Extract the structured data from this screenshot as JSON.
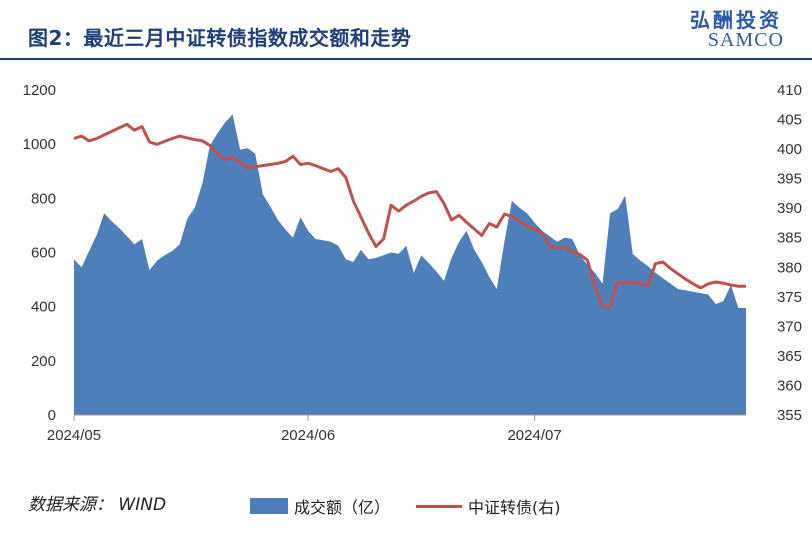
{
  "header": {
    "title": "图2：最近三月中证转债指数成交额和走势",
    "brand_cn": "弘酬投资",
    "brand_en": "SAMCO"
  },
  "footer": {
    "source": "数据来源：  WIND"
  },
  "colors": {
    "volume_area": "#4e7fbb",
    "index_line": "#c0504d",
    "title": "#1f3f78",
    "brand": "#2a5aa8"
  },
  "chart_data": {
    "type": "area+line",
    "x_ticks": [
      {
        "label": "2024/05",
        "t": 0
      },
      {
        "label": "2024/06",
        "t": 31
      },
      {
        "label": "2024/07",
        "t": 61
      }
    ],
    "x_range": [
      0,
      89
    ],
    "y_left": {
      "ticks": [
        0,
        200,
        400,
        600,
        800,
        1000,
        1200
      ],
      "range": [
        0,
        1200
      ]
    },
    "y_right": {
      "ticks": [
        355,
        360,
        365,
        370,
        375,
        380,
        385,
        390,
        395,
        400,
        405,
        410
      ],
      "range": [
        355,
        410
      ]
    },
    "legend": [
      "成交额（亿）",
      "中证转债(右)"
    ],
    "series": [
      {
        "name": "成交额（亿）",
        "axis": "left",
        "kind": "area",
        "t": [
          0,
          1,
          2,
          3,
          4,
          5,
          6,
          7,
          8,
          9,
          10,
          11,
          12,
          13,
          14,
          15,
          16,
          17,
          18,
          19,
          20,
          21,
          22,
          23,
          24,
          25,
          26,
          27,
          28,
          29,
          30,
          31,
          32,
          33,
          34,
          35,
          36,
          37,
          38,
          39,
          40,
          41,
          42,
          43,
          44,
          45,
          46,
          47,
          48,
          49,
          50,
          51,
          52,
          53,
          54,
          55,
          56,
          57,
          58,
          59,
          60,
          61,
          62,
          63,
          64,
          65,
          66,
          67,
          68,
          69,
          70,
          71,
          72,
          73,
          74,
          75,
          76,
          77,
          78,
          79,
          80,
          81,
          82,
          83,
          84,
          85,
          86,
          87,
          88,
          89
        ],
        "values": [
          575,
          545,
          605,
          665,
          745,
          715,
          690,
          660,
          630,
          650,
          535,
          570,
          590,
          605,
          630,
          725,
          765,
          855,
          995,
          1040,
          1080,
          1110,
          980,
          985,
          965,
          815,
          770,
          720,
          685,
          655,
          730,
          680,
          650,
          645,
          640,
          625,
          575,
          565,
          610,
          575,
          580,
          590,
          600,
          595,
          625,
          525,
          590,
          560,
          530,
          495,
          580,
          640,
          680,
          610,
          565,
          510,
          465,
          640,
          790,
          765,
          745,
          710,
          680,
          660,
          640,
          655,
          650,
          590,
          555,
          525,
          485,
          745,
          760,
          810,
          595,
          570,
          550,
          525,
          505,
          485,
          465,
          460,
          455,
          450,
          445,
          410,
          420,
          480,
          395,
          395
        ]
      },
      {
        "name": "中证转债(右)",
        "axis": "right",
        "kind": "line",
        "t": [
          0,
          1,
          2,
          3,
          4,
          5,
          6,
          7,
          8,
          9,
          10,
          11,
          12,
          13,
          14,
          15,
          16,
          17,
          18,
          19,
          20,
          21,
          22,
          23,
          24,
          25,
          26,
          27,
          28,
          29,
          30,
          31,
          32,
          33,
          34,
          35,
          36,
          37,
          38,
          39,
          40,
          41,
          42,
          43,
          44,
          45,
          46,
          47,
          48,
          49,
          50,
          51,
          52,
          53,
          54,
          55,
          56,
          57,
          58,
          59,
          60,
          61,
          62,
          63,
          64,
          65,
          66,
          67,
          68,
          69,
          70,
          71,
          72,
          73,
          74,
          75,
          76,
          77,
          78,
          79,
          80,
          81,
          82,
          83,
          84,
          85,
          86,
          87,
          88,
          89
        ],
        "values": [
          401.8,
          402.2,
          401.4,
          401.8,
          402.4,
          403.0,
          403.6,
          404.2,
          403.2,
          403.8,
          401.2,
          400.8,
          401.3,
          401.8,
          402.2,
          401.9,
          401.6,
          401.4,
          400.6,
          399.2,
          398.2,
          398.6,
          397.8,
          396.8,
          397.0,
          397.2,
          397.4,
          397.6,
          397.9,
          398.8,
          397.4,
          397.6,
          397.2,
          396.7,
          396.2,
          396.7,
          395.2,
          391.2,
          388.5,
          385.8,
          383.5,
          384.8,
          390.5,
          389.5,
          390.5,
          391.2,
          392.0,
          392.6,
          392.8,
          390.8,
          388.0,
          388.8,
          387.6,
          386.5,
          385.4,
          387.4,
          386.8,
          389.0,
          388.6,
          387.8,
          387.0,
          386.4,
          385.8,
          383.6,
          383.2,
          383.4,
          382.6,
          382.2,
          381.2,
          376.8,
          373.4,
          373.2,
          377.4,
          377.4,
          377.4,
          377.3,
          376.8,
          380.6,
          380.9,
          379.8,
          378.9,
          378.0,
          377.2,
          376.5,
          377.2,
          377.5,
          377.3,
          377.0,
          376.8,
          376.8
        ]
      }
    ]
  }
}
